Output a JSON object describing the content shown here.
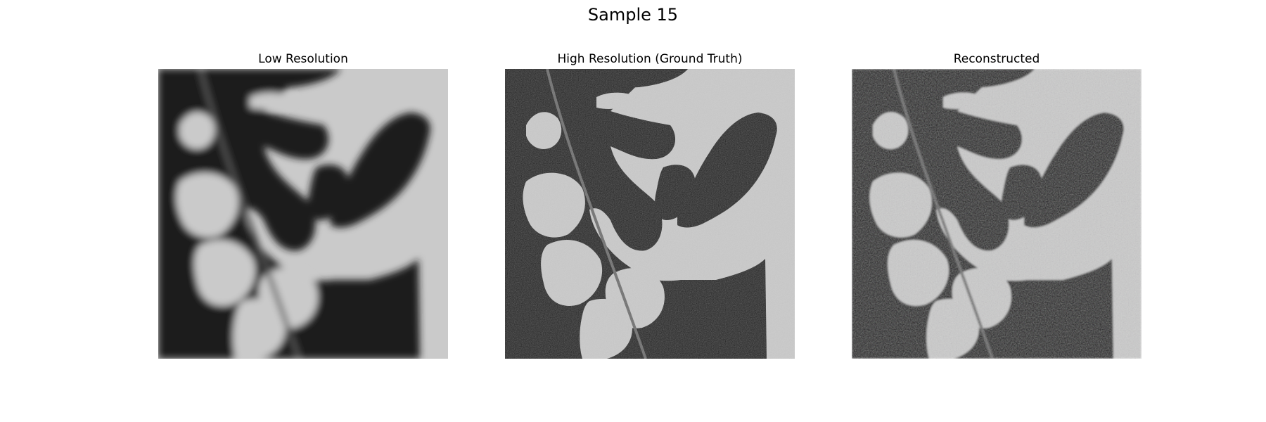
{
  "figure": {
    "title": "Sample 15"
  },
  "panels": [
    {
      "title": "Low Resolution",
      "style": "blurry"
    },
    {
      "title": "High Resolution (Ground Truth)",
      "style": "sharp"
    },
    {
      "title": "Reconstructed",
      "style": "noisy"
    }
  ],
  "colors": {
    "dark": "#1c1c1c",
    "light": "#cacaca",
    "background": "#ffffff"
  }
}
